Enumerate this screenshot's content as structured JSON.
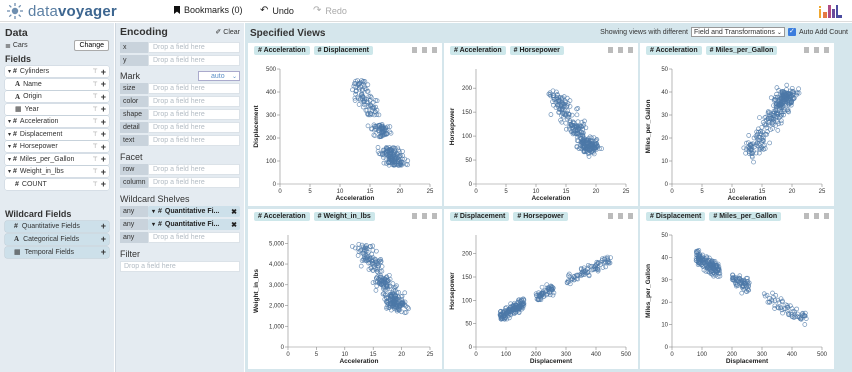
{
  "app": {
    "logo_prefix": "data",
    "logo_suffix": "voyager"
  },
  "toolbar": {
    "bookmarks": "Bookmarks (0)",
    "undo": "Undo",
    "redo": "Redo"
  },
  "data_panel": {
    "title": "Data",
    "dataset": "Cars",
    "change": "Change",
    "fields_title": "Fields",
    "fields": [
      {
        "type": "#",
        "name": "Cylinders",
        "expand": true
      },
      {
        "type": "A",
        "name": "Name"
      },
      {
        "type": "A",
        "name": "Origin"
      },
      {
        "type": "cal",
        "name": "Year"
      },
      {
        "type": "#",
        "name": "Acceleration",
        "expand": true
      },
      {
        "type": "#",
        "name": "Displacement",
        "expand": true
      },
      {
        "type": "#",
        "name": "Horsepower",
        "expand": true
      },
      {
        "type": "#",
        "name": "Miles_per_Gallon",
        "expand": true
      },
      {
        "type": "#",
        "name": "Weight_in_lbs",
        "expand": true
      },
      {
        "type": "#",
        "name": "COUNT"
      }
    ],
    "wildcard_title": "Wildcard Fields",
    "wildcards": [
      {
        "type": "#",
        "name": "Quantitative Fields"
      },
      {
        "type": "A",
        "name": "Categorical Fields"
      },
      {
        "type": "cal",
        "name": "Temporal Fields"
      }
    ]
  },
  "encoding": {
    "title": "Encoding",
    "clear": "Clear",
    "drop": "Drop a field here",
    "xy": [
      "x",
      "y"
    ],
    "mark_title": "Mark",
    "mark_value": "auto",
    "channels": [
      "size",
      "color",
      "shape",
      "detail",
      "text"
    ],
    "facet_title": "Facet",
    "facets": [
      "row",
      "column"
    ],
    "wild_title": "Wildcard Shelves",
    "shelves": [
      {
        "label": "any",
        "pill": "Quantitative Fi..."
      },
      {
        "label": "any",
        "pill": "Quantitative Fi..."
      },
      {
        "label": "any",
        "pill": ""
      }
    ],
    "filter_title": "Filter",
    "filter_drop": "Drop a field here"
  },
  "main": {
    "title": "Specified Views",
    "showing": "Showing views with different",
    "select": "Field and Transformations",
    "auto_add": "Auto Add Count"
  },
  "chart_data": [
    {
      "type": "scatter",
      "xfield": "Acceleration",
      "yfield": "Displacement",
      "xlabel": "Acceleration",
      "ylabel": "Displacement",
      "xlim": [
        0,
        25
      ],
      "ylim": [
        0,
        500
      ],
      "xticks": [
        0,
        5,
        10,
        15,
        20,
        25
      ],
      "yticks": [
        0,
        100,
        200,
        300,
        400,
        500
      ],
      "ytickfmt": "",
      "gen": "acc_disp"
    },
    {
      "type": "scatter",
      "xfield": "Acceleration",
      "yfield": "Horsepower",
      "xlabel": "Acceleration",
      "ylabel": "Horsepower",
      "xlim": [
        0,
        25
      ],
      "ylim": [
        0,
        240
      ],
      "xticks": [
        0,
        5,
        10,
        15,
        20,
        25
      ],
      "yticks": [
        0,
        50,
        100,
        150,
        200
      ],
      "ytickfmt": "",
      "gen": "acc_hp"
    },
    {
      "type": "scatter",
      "xfield": "Acceleration",
      "yfield": "Miles_per_Gallon",
      "xlabel": "Acceleration",
      "ylabel": "Miles_per_Gallon",
      "xlim": [
        0,
        25
      ],
      "ylim": [
        0,
        50
      ],
      "xticks": [
        0,
        5,
        10,
        15,
        20,
        25
      ],
      "yticks": [
        0,
        10,
        20,
        30,
        40,
        50
      ],
      "ytickfmt": "",
      "gen": "acc_mpg"
    },
    {
      "type": "scatter",
      "xfield": "Acceleration",
      "yfield": "Weight_in_lbs",
      "xlabel": "Acceleration",
      "ylabel": "Weight_in_lbs",
      "xlim": [
        0,
        25
      ],
      "ylim": [
        0,
        5400
      ],
      "xticks": [
        0,
        5,
        10,
        15,
        20,
        25
      ],
      "yticks": [
        0,
        1000,
        2000,
        3000,
        4000,
        5000
      ],
      "ytickfmt": "comma",
      "gen": "acc_wt"
    },
    {
      "type": "scatter",
      "xfield": "Displacement",
      "yfield": "Horsepower",
      "xlabel": "Displacement",
      "ylabel": "Horsepower",
      "xlim": [
        0,
        500
      ],
      "ylim": [
        0,
        240
      ],
      "xticks": [
        0,
        100,
        200,
        300,
        400,
        500
      ],
      "yticks": [
        0,
        50,
        100,
        150,
        200
      ],
      "ytickfmt": "",
      "gen": "disp_hp"
    },
    {
      "type": "scatter",
      "xfield": "Displacement",
      "yfield": "Miles_per_Gallon",
      "xlabel": "Displacement",
      "ylabel": "Miles_per_Gallon",
      "xlim": [
        0,
        500
      ],
      "ylim": [
        0,
        50
      ],
      "xticks": [
        0,
        100,
        200,
        300,
        400,
        500
      ],
      "yticks": [
        0,
        10,
        20,
        30,
        40,
        50
      ],
      "ytickfmt": "",
      "gen": "disp_mpg"
    }
  ],
  "colors": {
    "point": "#4c78a8",
    "panel": "#e4ebf1",
    "main": "#d5e6ec",
    "tag": "#cde7ea"
  }
}
